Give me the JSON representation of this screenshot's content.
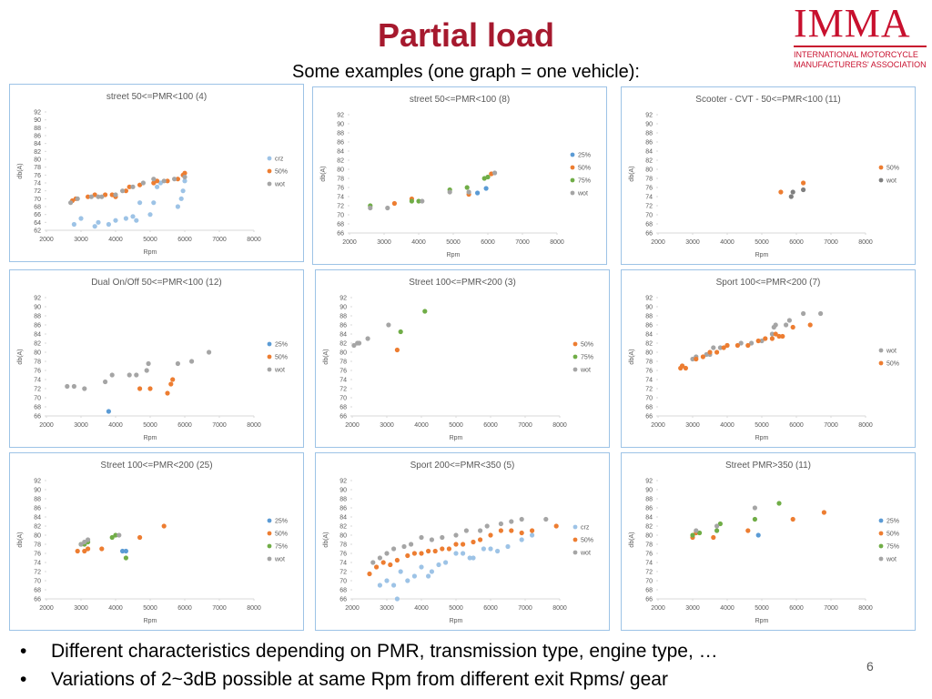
{
  "header": {
    "title": "Partial load",
    "subtitle": "Some examples (one graph = one vehicle):"
  },
  "logo": {
    "name": "IMMA",
    "line1": "INTERNATIONAL MOTORCYCLE",
    "line2": "MANUFACTURERS' ASSOCIATION"
  },
  "bullets": [
    "Different characteristics depending on PMR, transmission type, engine type, …",
    "Variations of 2~3dB possible at same Rpm from different exit Rpms/ gear"
  ],
  "page_number": "6",
  "chart_data": [
    {
      "type": "scatter",
      "title": "street 50<=PMR<100 (4)",
      "xlabel": "Rpm",
      "ylabel": "db(A)",
      "xlim": [
        2000,
        8000
      ],
      "xticks": [
        2000,
        3000,
        4000,
        5000,
        6000,
        7000,
        8000
      ],
      "ylim": [
        62,
        92
      ],
      "yticks": [
        62,
        64,
        66,
        68,
        70,
        72,
        74,
        76,
        78,
        80,
        82,
        84,
        86,
        88,
        90,
        92
      ],
      "series": [
        {
          "name": "crz",
          "color": "#9dc3e6",
          "x": [
            2800,
            3000,
            3400,
            3500,
            3800,
            4000,
            4300,
            4500,
            4600,
            4700,
            5000,
            5100,
            5200,
            5300,
            5800,
            5900,
            5950,
            6000
          ],
          "values": [
            63.5,
            65,
            63,
            64,
            63.5,
            64.5,
            65,
            65.5,
            64.5,
            69,
            66,
            69,
            73,
            74,
            68,
            70,
            72,
            74.5
          ]
        },
        {
          "name": "50%",
          "color": "#ed7d31",
          "x": [
            2750,
            2850,
            3200,
            3400,
            3700,
            3900,
            4000,
            4300,
            4400,
            4700,
            5100,
            5200,
            5500,
            5800,
            5950,
            6000
          ],
          "values": [
            69.5,
            70,
            70.5,
            71,
            71,
            71,
            70.5,
            72,
            73,
            73.5,
            74,
            74.5,
            74.5,
            75,
            76,
            76.5
          ]
        },
        {
          "name": "wot",
          "color": "#a5a5a5",
          "x": [
            2700,
            2900,
            3300,
            3500,
            3600,
            4000,
            4200,
            4500,
            4800,
            5100,
            5400,
            5700,
            6000
          ],
          "values": [
            69,
            70,
            70.5,
            70.5,
            70.5,
            71,
            72,
            73,
            74,
            75,
            74.5,
            75,
            75.5
          ]
        }
      ]
    },
    {
      "type": "scatter",
      "title": "street 50<=PMR<100 (8)",
      "xlabel": "Rpm",
      "ylabel": "db(A)",
      "xlim": [
        2000,
        8000
      ],
      "xticks": [
        2000,
        3000,
        4000,
        5000,
        6000,
        7000,
        8000
      ],
      "ylim": [
        66,
        92
      ],
      "yticks": [
        66,
        68,
        70,
        72,
        74,
        76,
        78,
        80,
        82,
        84,
        86,
        88,
        90,
        92
      ],
      "series": [
        {
          "name": "25%",
          "color": "#5b9bd5",
          "x": [
            5700,
            5950
          ],
          "values": [
            74.8,
            75.8
          ]
        },
        {
          "name": "50%",
          "color": "#ed7d31",
          "x": [
            3300,
            3800,
            5450,
            6100
          ],
          "values": [
            72.5,
            73.5,
            74.5,
            79
          ]
        },
        {
          "name": "75%",
          "color": "#70ad47",
          "x": [
            2600,
            3800,
            4000,
            4900,
            5400,
            5900,
            6000
          ],
          "values": [
            72,
            73,
            73,
            75.5,
            76,
            78,
            78.3
          ]
        },
        {
          "name": "wot",
          "color": "#a5a5a5",
          "x": [
            2600,
            3100,
            4100,
            4900,
            5450,
            6200
          ],
          "values": [
            71.5,
            71.5,
            73,
            75,
            75,
            79.2
          ]
        }
      ]
    },
    {
      "type": "scatter",
      "title": "Scooter - CVT - 50<=PMR<100 (11)",
      "xlabel": "Rpm",
      "ylabel": "db(A)",
      "xlim": [
        2000,
        8000
      ],
      "xticks": [
        2000,
        3000,
        4000,
        5000,
        6000,
        7000,
        8000
      ],
      "ylim": [
        66,
        92
      ],
      "yticks": [
        66,
        68,
        70,
        72,
        74,
        76,
        78,
        80,
        82,
        84,
        86,
        88,
        90,
        92
      ],
      "series": [
        {
          "name": "50%",
          "color": "#ed7d31",
          "x": [
            5550,
            6200
          ],
          "values": [
            75,
            77
          ]
        },
        {
          "name": "wot",
          "color": "#7f7f7f",
          "x": [
            5850,
            5900,
            6200
          ],
          "values": [
            74,
            75,
            75.5
          ]
        }
      ]
    },
    {
      "type": "scatter",
      "title": "Dual On/Off 50<=PMR<100 (12)",
      "xlabel": "Rpm",
      "ylabel": "db(A)",
      "xlim": [
        2000,
        8000
      ],
      "xticks": [
        2000,
        3000,
        4000,
        5000,
        6000,
        7000,
        8000
      ],
      "ylim": [
        66,
        92
      ],
      "yticks": [
        66,
        68,
        70,
        72,
        74,
        76,
        78,
        80,
        82,
        84,
        86,
        88,
        90,
        92
      ],
      "series": [
        {
          "name": "25%",
          "color": "#5b9bd5",
          "x": [
            3800
          ],
          "values": [
            67
          ]
        },
        {
          "name": "50%",
          "color": "#ed7d31",
          "x": [
            4700,
            5000,
            5500,
            5600,
            5650
          ],
          "values": [
            72,
            72,
            71,
            73,
            74
          ]
        },
        {
          "name": "wot",
          "color": "#a5a5a5",
          "x": [
            2600,
            2800,
            3100,
            3700,
            3900,
            4400,
            4600,
            4900,
            4950,
            5800,
            6200,
            6700
          ],
          "values": [
            72.5,
            72.5,
            72,
            73.5,
            75,
            75,
            75,
            76,
            77.5,
            77.5,
            78,
            80
          ]
        }
      ]
    },
    {
      "type": "scatter",
      "title": "Street 100<=PMR<200 (3)",
      "xlabel": "Rpm",
      "ylabel": "db(A)",
      "xlim": [
        2000,
        8000
      ],
      "xticks": [
        2000,
        3000,
        4000,
        5000,
        6000,
        7000,
        8000
      ],
      "ylim": [
        66,
        92
      ],
      "yticks": [
        66,
        68,
        70,
        72,
        74,
        76,
        78,
        80,
        82,
        84,
        86,
        88,
        90,
        92
      ],
      "series": [
        {
          "name": "50%",
          "color": "#ed7d31",
          "x": [
            3300
          ],
          "values": [
            80.5
          ]
        },
        {
          "name": "75%",
          "color": "#70ad47",
          "x": [
            3400,
            4100
          ],
          "values": [
            84.5,
            89
          ]
        },
        {
          "name": "wot",
          "color": "#a5a5a5",
          "x": [
            2050,
            2150,
            2200,
            2450,
            3050
          ],
          "values": [
            81.5,
            82,
            82,
            83,
            86
          ]
        }
      ]
    },
    {
      "type": "scatter",
      "title": "Sport 100<=PMR<200 (7)",
      "xlabel": "Rpm",
      "ylabel": "db(A)",
      "xlim": [
        2000,
        8000
      ],
      "xticks": [
        2000,
        3000,
        4000,
        5000,
        6000,
        7000,
        8000
      ],
      "ylim": [
        66,
        92
      ],
      "yticks": [
        66,
        68,
        70,
        72,
        74,
        76,
        78,
        80,
        82,
        84,
        86,
        88,
        90,
        92
      ],
      "series": [
        {
          "name": "wot",
          "color": "#a5a5a5",
          "x": [
            2700,
            3000,
            3100,
            3400,
            3500,
            3600,
            3800,
            4000,
            4400,
            4700,
            5000,
            5300,
            5350,
            5400,
            5700,
            5800,
            6200,
            6700
          ],
          "values": [
            77,
            78.5,
            79,
            79.5,
            79.5,
            81,
            81,
            81.5,
            82,
            82,
            82.5,
            84,
            85.5,
            86,
            86,
            87,
            88.5,
            88.5
          ]
        },
        {
          "name": "50%",
          "color": "#ed7d31",
          "x": [
            2650,
            2700,
            2800,
            3100,
            3300,
            3500,
            3700,
            3900,
            4000,
            4300,
            4600,
            4900,
            5100,
            5300,
            5400,
            5500,
            5600,
            5900,
            6400
          ],
          "values": [
            76.5,
            77,
            76.5,
            78.5,
            79,
            80,
            80,
            81,
            81.5,
            81.5,
            81.5,
            82.5,
            83,
            83,
            84,
            83.5,
            83.5,
            85.5,
            86
          ]
        }
      ]
    },
    {
      "type": "scatter",
      "title": "Street 100<=PMR<200 (25)",
      "xlabel": "Rpm",
      "ylabel": "db(A)",
      "xlim": [
        2000,
        8000
      ],
      "xticks": [
        2000,
        3000,
        4000,
        5000,
        6000,
        7000,
        8000
      ],
      "ylim": [
        66,
        92
      ],
      "yticks": [
        66,
        68,
        70,
        72,
        74,
        76,
        78,
        80,
        82,
        84,
        86,
        88,
        90,
        92
      ],
      "series": [
        {
          "name": "25%",
          "color": "#5b9bd5",
          "x": [
            4200,
            4300
          ],
          "values": [
            76.5,
            76.5
          ]
        },
        {
          "name": "50%",
          "color": "#ed7d31",
          "x": [
            2900,
            3100,
            3200,
            3600,
            4700,
            5400
          ],
          "values": [
            76.5,
            76.5,
            77,
            77,
            79.5,
            82
          ]
        },
        {
          "name": "75%",
          "color": "#70ad47",
          "x": [
            3000,
            3100,
            3200,
            3900,
            4000,
            4300
          ],
          "values": [
            78,
            78,
            78.5,
            79.5,
            80,
            75
          ]
        },
        {
          "name": "wot",
          "color": "#a5a5a5",
          "x": [
            3000,
            3100,
            3200,
            4100
          ],
          "values": [
            78,
            78.5,
            79,
            80
          ]
        }
      ]
    },
    {
      "type": "scatter",
      "title": "Sport 200<=PMR<350 (5)",
      "xlabel": "Rpm",
      "ylabel": "db(A)",
      "xlim": [
        2000,
        8000
      ],
      "xticks": [
        2000,
        3000,
        4000,
        5000,
        6000,
        7000,
        8000
      ],
      "ylim": [
        66,
        92
      ],
      "yticks": [
        66,
        68,
        70,
        72,
        74,
        76,
        78,
        80,
        82,
        84,
        86,
        88,
        90,
        92
      ],
      "series": [
        {
          "name": "crz",
          "color": "#9dc3e6",
          "x": [
            2800,
            3000,
            3200,
            3300,
            3400,
            3600,
            3800,
            4000,
            4200,
            4300,
            4500,
            4700,
            5000,
            5200,
            5400,
            5500,
            5800,
            6000,
            6200,
            6500,
            6900,
            7200
          ],
          "values": [
            69,
            70,
            69,
            66,
            72,
            70,
            71,
            73,
            71,
            72,
            73.5,
            74,
            76,
            76,
            75,
            75,
            77,
            77,
            76.5,
            77.5,
            79,
            80
          ]
        },
        {
          "name": "50%",
          "color": "#ed7d31",
          "x": [
            2500,
            2700,
            2900,
            3100,
            3300,
            3600,
            3800,
            4000,
            4200,
            4400,
            4600,
            4800,
            5000,
            5200,
            5500,
            5700,
            6000,
            6300,
            6600,
            6900,
            7200,
            7900
          ],
          "values": [
            71.5,
            73,
            74,
            73.5,
            74.5,
            75.5,
            76,
            76,
            76.5,
            76.5,
            77,
            77,
            78,
            78,
            78.5,
            79,
            80,
            81,
            81,
            80.5,
            81,
            82
          ]
        },
        {
          "name": "wot",
          "color": "#a5a5a5",
          "x": [
            2600,
            2800,
            3000,
            3200,
            3500,
            3700,
            4000,
            4300,
            4600,
            5000,
            5300,
            5700,
            5900,
            6300,
            6600,
            6900,
            7600
          ],
          "values": [
            74,
            75,
            76,
            77,
            77.5,
            78,
            79.5,
            79,
            79.5,
            80,
            81,
            81,
            82,
            82.5,
            83,
            83.5,
            83.5
          ]
        }
      ]
    },
    {
      "type": "scatter",
      "title": "Street PMR>350 (11)",
      "xlabel": "Rpm",
      "ylabel": "db(A)",
      "xlim": [
        2000,
        8000
      ],
      "xticks": [
        2000,
        3000,
        4000,
        5000,
        6000,
        7000,
        8000
      ],
      "ylim": [
        66,
        92
      ],
      "yticks": [
        66,
        68,
        70,
        72,
        74,
        76,
        78,
        80,
        82,
        84,
        86,
        88,
        90,
        92
      ],
      "series": [
        {
          "name": "25%",
          "color": "#5b9bd5",
          "x": [
            4900
          ],
          "values": [
            80
          ]
        },
        {
          "name": "50%",
          "color": "#ed7d31",
          "x": [
            3000,
            3100,
            3600,
            4600,
            5900,
            6800
          ],
          "values": [
            79.5,
            80.5,
            79.5,
            81,
            83.5,
            85
          ]
        },
        {
          "name": "75%",
          "color": "#70ad47",
          "x": [
            3000,
            3200,
            3700,
            3800,
            4800,
            5500
          ],
          "values": [
            80,
            80.5,
            81,
            82.5,
            83.5,
            87
          ]
        },
        {
          "name": "wot",
          "color": "#a5a5a5",
          "x": [
            3100,
            3700,
            4800
          ],
          "values": [
            81,
            82,
            86
          ]
        }
      ]
    }
  ]
}
